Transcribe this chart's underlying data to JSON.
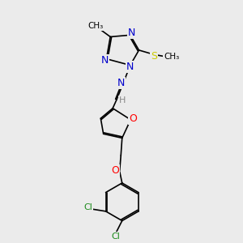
{
  "background_color": "#ebebeb",
  "bond_color": "#000000",
  "figsize": [
    3.0,
    3.0
  ],
  "dpi": 100,
  "atom_colors": {
    "N": "#0000cc",
    "O": "#ff0000",
    "S": "#cccc00",
    "Cl": "#1a8a1a",
    "C": "#000000",
    "H": "#888888"
  }
}
